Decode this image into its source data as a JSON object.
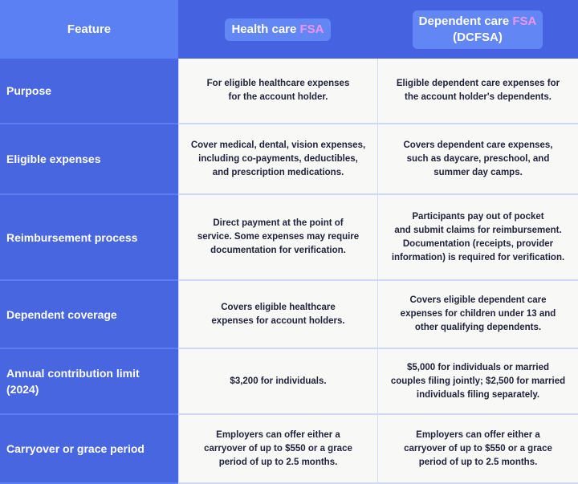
{
  "header": {
    "feature": "Feature",
    "col1_prefix": "Health care ",
    "col1_accent": "FSA",
    "col2_prefix": "Dependent care ",
    "col2_accent": "FSA",
    "col2_suffix": "(DCFSA)"
  },
  "colors": {
    "header_blue": "#4563e0",
    "feature_header": "#5b80f3",
    "accent_pink": "#ee93f0",
    "cell_bg": "#f8f8f6",
    "text": "#22233d"
  },
  "rows": [
    {
      "label": "Purpose",
      "health": "For eligible healthcare expenses\nfor the account holder.",
      "dependent": "Eligible dependent care expenses for\nthe account holder's dependents."
    },
    {
      "label": "Eligible expenses",
      "health": "Cover medical, dental, vision expenses,\nincluding co-payments, deductibles,\nand prescription medications.",
      "dependent": "Covers dependent care expenses,\nsuch as daycare, preschool, and\nsummer day camps."
    },
    {
      "label": "Reimbursement process",
      "health": "Direct payment at the point of\nservice. Some expenses may require\ndocumentation for verification.",
      "dependent": "Participants pay out of pocket\nand submit claims for reimbursement.\nDocumentation (receipts, provider\ninformation) is required for verification."
    },
    {
      "label": "Dependent coverage",
      "health": "Covers eligible healthcare\nexpenses for account holders.",
      "dependent": "Covers eligible dependent care\nexpenses for children under 13 and\nother qualifying dependents."
    },
    {
      "label": "Annual contribution limit\n(2024)",
      "health": "$3,200 for individuals.",
      "dependent": "$5,000 for individuals or married\ncouples filing jointly; $2,500 for married\nindividuals filing separately."
    },
    {
      "label": "Carryover or grace period",
      "health": "Employers can offer either a\ncarryover of up to $550 or a grace\nperiod of up to 2.5 months.",
      "dependent": "Employers can offer either a\ncarryover of up to $550 or a grace\nperiod of up to 2.5 months."
    }
  ]
}
